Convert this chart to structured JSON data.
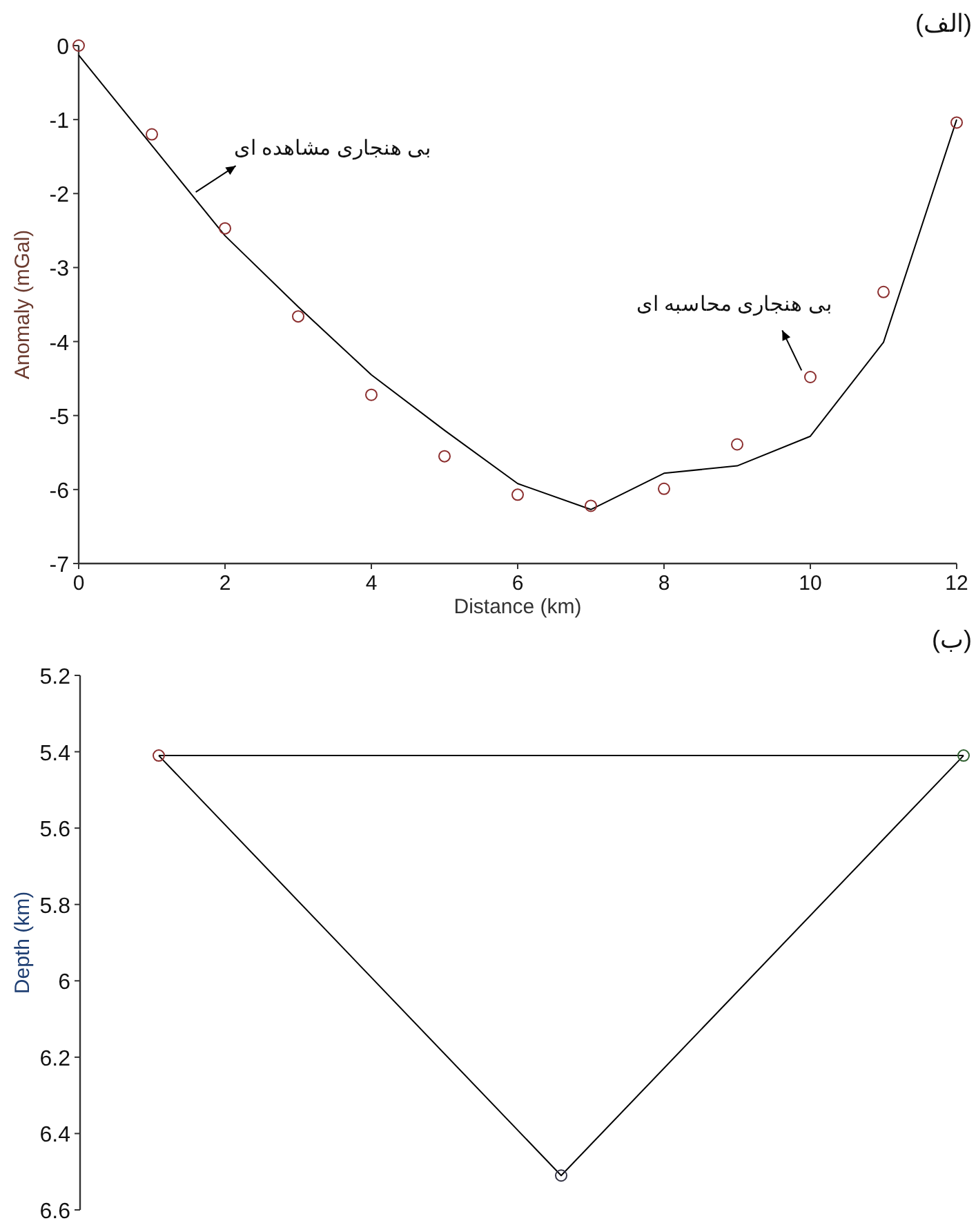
{
  "chart_data": [
    {
      "type": "line",
      "title": "(الف)",
      "xlabel": "Distance (km)",
      "ylabel": "Anomaly (mGal)",
      "x": [
        0,
        1,
        2,
        3,
        4,
        5,
        6,
        7,
        8,
        9,
        10,
        11,
        12
      ],
      "xlim": [
        0,
        12
      ],
      "xticks": [
        0,
        2,
        4,
        6,
        8,
        10,
        12
      ],
      "ylim": [
        -7,
        0
      ],
      "yticks": [
        -7,
        -6,
        -5,
        -4,
        -3,
        -2,
        -1,
        0
      ],
      "grid": false,
      "series": [
        {
          "type": "scatter",
          "marker": "circle",
          "color": "#8b2e2e",
          "values": [
            0,
            -1.2,
            -2.47,
            -3.66,
            -4.72,
            -5.55,
            -6.07,
            -6.22,
            -5.99,
            -5.39,
            -4.48,
            -3.33,
            -1.04
          ]
        },
        {
          "type": "line",
          "marker": "none",
          "line_style": "solid",
          "color": "#000000",
          "values": [
            -0.13,
            -1.35,
            -2.57,
            -3.53,
            -4.45,
            -5.2,
            -5.92,
            -6.27,
            -5.78,
            -5.68,
            -5.28,
            -4.01,
            -1.0
          ]
        }
      ],
      "annotations": [
        {
          "text": "بی هنجاری مشاهده ای",
          "x": 1.6,
          "y": -1.98
        },
        {
          "text": "بی هنجاری محاسبه ای",
          "x": 9.88,
          "y": -4.39
        }
      ]
    },
    {
      "type": "line",
      "title": "(ب)",
      "ylabel": "Depth (km)",
      "categories": [
        null,
        null,
        null
      ],
      "ylim": [
        6.6,
        5.2
      ],
      "yticks": [
        5.2,
        5.4,
        5.6,
        5.8,
        6,
        6.2,
        6.4,
        6.6
      ],
      "tick_labels": "y",
      "grid": false,
      "series": [
        {
          "type": "line",
          "marker": "circle",
          "line_style": "solid",
          "color": "#000000",
          "colors": [
            "#8b2e2e",
            "#333344",
            "#2e5e2e"
          ],
          "values": [
            5.41,
            6.51,
            5.41
          ]
        }
      ],
      "ref_lines": [
        {
          "axis": "y",
          "value": 5.41,
          "color": "#000000"
        }
      ]
    }
  ]
}
